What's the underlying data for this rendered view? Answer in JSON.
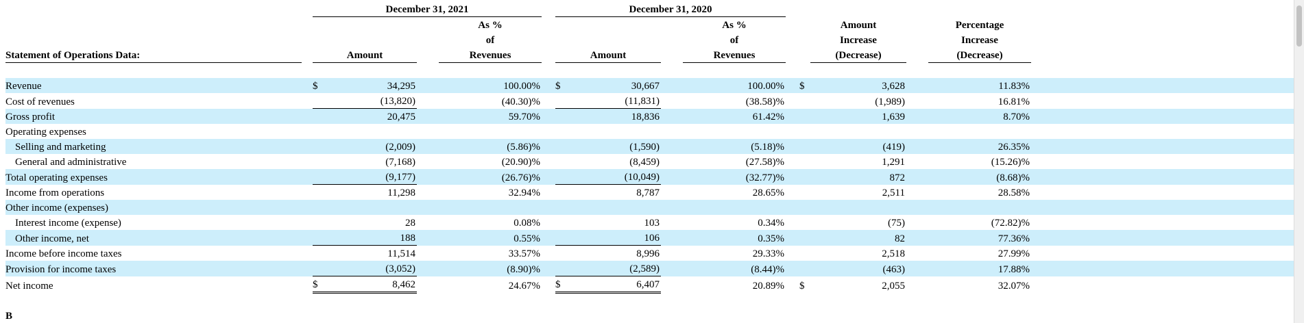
{
  "header": {
    "period_2021": "December 31, 2021",
    "period_2020": "December 31, 2020",
    "section_title": "Statement of Operations Data:",
    "amount": "Amount",
    "as_pct_line1": "As %",
    "as_pct_line2": "of",
    "as_pct_line3": "Revenues",
    "amt_change_line1": "Amount",
    "amt_change_line2": "Increase",
    "amt_change_line3": "(Decrease)",
    "pct_change_line1": "Percentage",
    "pct_change_line2": "Increase",
    "pct_change_line3": "(Decrease)"
  },
  "currency_symbol": "$",
  "rows": [
    {
      "label": "Revenue",
      "indent": false,
      "a21": "34,295",
      "p21": "100.00%",
      "a20": "30,667",
      "p20": "100.00%",
      "chg": "3,628",
      "pchg": "11.83%",
      "dollar": true
    },
    {
      "label": "Cost of revenues",
      "indent": false,
      "a21": "(13,820)",
      "p21": "(40.30)%",
      "a20": "(11,831)",
      "p20": "(38.58)%",
      "chg": "(1,989)",
      "pchg": "16.81%"
    },
    {
      "label": "Gross profit",
      "indent": false,
      "a21": "20,475",
      "p21": "59.70%",
      "a20": "18,836",
      "p20": "61.42%",
      "chg": "1,639",
      "pchg": "8.70%"
    },
    {
      "label": "Operating expenses",
      "indent": false,
      "a21": "",
      "p21": "",
      "a20": "",
      "p20": "",
      "chg": "",
      "pchg": ""
    },
    {
      "label": "Selling and marketing",
      "indent": true,
      "a21": "(2,009)",
      "p21": "(5.86)%",
      "a20": "(1,590)",
      "p20": "(5.18)%",
      "chg": "(419)",
      "pchg": "26.35%"
    },
    {
      "label": "General and administrative",
      "indent": true,
      "a21": "(7,168)",
      "p21": "(20.90)%",
      "a20": "(8,459)",
      "p20": "(27.58)%",
      "chg": "1,291",
      "pchg": "(15.26)%"
    },
    {
      "label": "Total operating expenses",
      "indent": false,
      "a21": "(9,177)",
      "p21": "(26.76)%",
      "a20": "(10,049)",
      "p20": "(32.77)%",
      "chg": "872",
      "pchg": "(8.68)%"
    },
    {
      "label": "Income from operations",
      "indent": false,
      "a21": "11,298",
      "p21": "32.94%",
      "a20": "8,787",
      "p20": "28.65%",
      "chg": "2,511",
      "pchg": "28.58%"
    },
    {
      "label": "Other income (expenses)",
      "indent": false,
      "a21": "",
      "p21": "",
      "a20": "",
      "p20": "",
      "chg": "",
      "pchg": ""
    },
    {
      "label": "Interest income (expense)",
      "indent": true,
      "a21": "28",
      "p21": "0.08%",
      "a20": "103",
      "p20": "0.34%",
      "chg": "(75)",
      "pchg": "(72.82)%"
    },
    {
      "label": "Other income, net",
      "indent": true,
      "a21": "188",
      "p21": "0.55%",
      "a20": "106",
      "p20": "0.35%",
      "chg": "82",
      "pchg": "77.36%"
    },
    {
      "label": "Income before income taxes",
      "indent": false,
      "a21": "11,514",
      "p21": "33.57%",
      "a20": "8,996",
      "p20": "29.33%",
      "chg": "2,518",
      "pchg": "27.99%"
    },
    {
      "label": "Provision for income taxes",
      "indent": false,
      "a21": "(3,052)",
      "p21": "(8.90)%",
      "a20": "(2,589)",
      "p20": "(8.44)%",
      "chg": "(463)",
      "pchg": "17.88%"
    },
    {
      "label": "Net income",
      "indent": false,
      "a21": "8,462",
      "p21": "24.67%",
      "a20": "6,407",
      "p20": "20.89%",
      "chg": "2,055",
      "pchg": "32.07%",
      "dollar": true
    }
  ],
  "colors": {
    "row_shade": "#cdeefb"
  },
  "next_text": "B"
}
